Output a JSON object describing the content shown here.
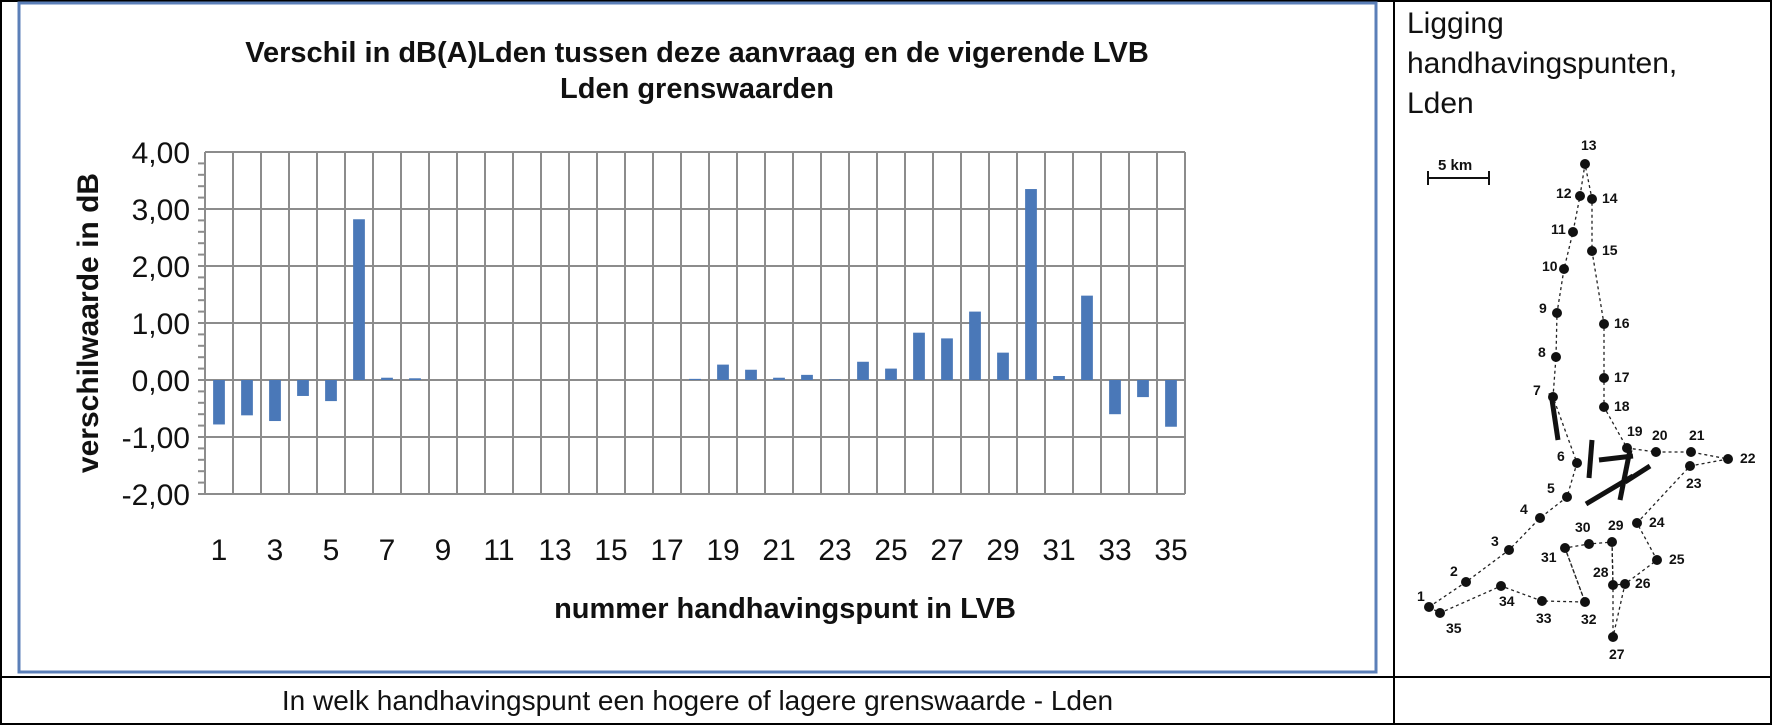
{
  "chart_data": {
    "type": "bar",
    "title_lines": [
      "Verschil in dB(A)Lden tussen deze aanvraag en de vigerende LVB",
      "Lden grenswaarden"
    ],
    "xlabel": "nummer handhavingspunt in LVB",
    "ylabel": "verschilwaarde in dB",
    "ylim": [
      -2,
      4
    ],
    "yticks": [
      "4,00",
      "3,00",
      "2,00",
      "1,00",
      "0,00",
      "-1,00",
      "-2,00"
    ],
    "categories": [
      "1",
      "2",
      "3",
      "4",
      "5",
      "6",
      "7",
      "8",
      "9",
      "10",
      "11",
      "12",
      "13",
      "14",
      "15",
      "16",
      "17",
      "18",
      "19",
      "20",
      "21",
      "22",
      "23",
      "24",
      "25",
      "26",
      "27",
      "28",
      "29",
      "30",
      "31",
      "32",
      "33",
      "34",
      "35"
    ],
    "xtick_labels": [
      "1",
      "3",
      "5",
      "7",
      "9",
      "11",
      "13",
      "15",
      "17",
      "19",
      "21",
      "23",
      "25",
      "27",
      "29",
      "31",
      "33",
      "35"
    ],
    "values": [
      -0.78,
      -0.62,
      -0.72,
      -0.28,
      -0.37,
      2.82,
      0.04,
      0.03,
      0,
      0,
      0,
      0,
      0,
      0,
      0,
      0,
      0,
      0.02,
      0.27,
      0.18,
      0.04,
      0.09,
      0.01,
      0.32,
      0.2,
      0.83,
      0.73,
      1.2,
      0.48,
      3.35,
      0.07,
      1.48,
      -0.6,
      -0.3,
      -0.82
    ],
    "bar_color": "#4a78b8",
    "grid": true
  },
  "caption": "In welk handhavingspunt een hogere of lagere grenswaarde - Lden",
  "legend_panel": {
    "title_lines": [
      "Ligging",
      "handhavingspunten,",
      "Lden"
    ],
    "scale_label": "5 km",
    "points": [
      "1",
      "2",
      "3",
      "4",
      "5",
      "6",
      "7",
      "8",
      "9",
      "10",
      "11",
      "12",
      "13",
      "14",
      "15",
      "16",
      "17",
      "18",
      "19",
      "20",
      "21",
      "22",
      "23",
      "24",
      "25",
      "26",
      "27",
      "28",
      "29",
      "30",
      "31",
      "32",
      "33",
      "34",
      "35"
    ]
  }
}
